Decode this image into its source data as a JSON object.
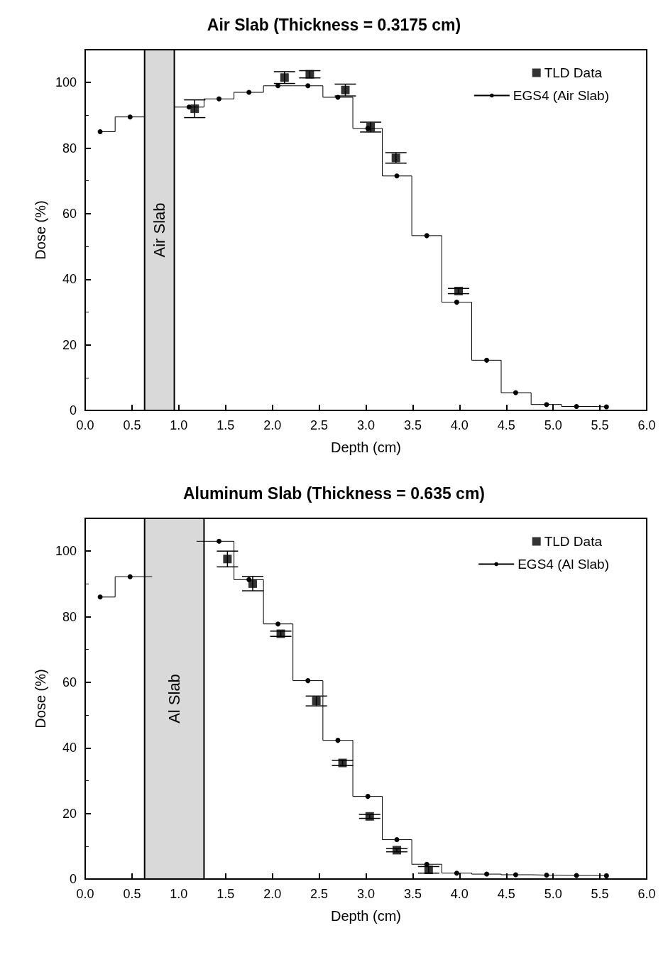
{
  "chart_data": [
    {
      "type": "scatter",
      "title": "Air Slab (Thickness = 0.3175 cm)",
      "xlabel": "Depth (cm)",
      "ylabel": "Dose (%)",
      "xlim": [
        0,
        6
      ],
      "ylim": [
        0,
        110
      ],
      "xticks": [
        {
          "value": 0,
          "label": "0.0"
        },
        0.5,
        {
          "value": 1,
          "label": "1.0"
        },
        1.5,
        {
          "value": 2,
          "label": "2.0"
        },
        2.5,
        {
          "value": 3,
          "label": "3.0"
        },
        3.5,
        {
          "value": 4,
          "label": "4.0"
        },
        4.5,
        {
          "value": 5,
          "label": "5.0"
        },
        5.5,
        {
          "value": 6,
          "label": "6.0"
        }
      ],
      "yticks": [
        0,
        20,
        40,
        60,
        80,
        100
      ],
      "legend": "top right",
      "grid": false,
      "bands": [
        {
          "axis": "x",
          "from": 0.635,
          "to": 0.9525,
          "label": "Air Slab",
          "color": "#d9d9d9"
        }
      ],
      "series": [
        {
          "name": "TLD Data",
          "marker": "square",
          "color": "#000000",
          "x": [
            1.17,
            2.13,
            2.4,
            2.78,
            3.05,
            3.32,
            3.99
          ],
          "values": [
            92,
            101.5,
            102.5,
            97.7,
            86.4,
            77,
            36.4
          ],
          "errors": [
            2.7,
            1.8,
            1.1,
            1.8,
            1.5,
            1.6,
            0.8
          ]
        },
        {
          "name": "EGS4 (Air Slab)",
          "type": "step",
          "marker": "circle",
          "line_style": "solid",
          "color": "#000000",
          "x": [
            0.16,
            0.48,
            0.8,
            1.11,
            1.43,
            1.75,
            2.06,
            2.38,
            2.7,
            3.02,
            3.33,
            3.65,
            3.97,
            4.29,
            4.6,
            4.93,
            5.25,
            5.57
          ],
          "values": [
            85,
            89.5,
            null,
            92.5,
            95,
            97,
            99,
            99,
            95.5,
            86,
            71.5,
            53.3,
            33,
            15.3,
            5.4,
            1.8,
            1.2,
            1.1
          ]
        }
      ]
    },
    {
      "type": "scatter",
      "title": "Aluminum Slab (Thickness = 0.635 cm)",
      "xlabel": "Depth (cm)",
      "ylabel": "Dose (%)",
      "xlim": [
        0,
        6
      ],
      "ylim": [
        0,
        110
      ],
      "xticks": [
        {
          "value": 0,
          "label": "0.0"
        },
        0.5,
        {
          "value": 1,
          "label": "1.0"
        },
        1.5,
        {
          "value": 2,
          "label": "2.0"
        },
        2.5,
        {
          "value": 3,
          "label": "3.0"
        },
        3.5,
        {
          "value": 4,
          "label": "4.0"
        },
        4.5,
        {
          "value": 5,
          "label": "5.0"
        },
        5.5,
        {
          "value": 6,
          "label": "6.0"
        }
      ],
      "yticks": [
        0,
        20,
        40,
        60,
        80,
        100
      ],
      "legend": "top right",
      "grid": false,
      "bands": [
        {
          "axis": "x",
          "from": 0.635,
          "to": 1.27,
          "label": "Al Slab",
          "color": "#d9d9d9"
        }
      ],
      "series": [
        {
          "name": "TLD Data",
          "marker": "square",
          "color": "#000000",
          "x": [
            1.52,
            1.79,
            2.09,
            2.47,
            2.75,
            3.04,
            3.33,
            3.67
          ],
          "values": [
            97.6,
            90.1,
            74.8,
            54.3,
            35.4,
            19.1,
            8.8,
            2.8
          ],
          "errors": [
            2.4,
            2.2,
            0.8,
            1.5,
            0.8,
            0.6,
            0.5,
            1
          ]
        },
        {
          "name": "EGS4 (Al Slab)",
          "type": "step",
          "marker": "circle",
          "line_style": "solid",
          "color": "#000000",
          "x": [
            0.16,
            0.48,
            0.95,
            1.43,
            1.75,
            2.06,
            2.38,
            2.7,
            3.02,
            3.33,
            3.65,
            3.97,
            4.29,
            4.6,
            4.93,
            5.25,
            5.57
          ],
          "values": [
            86,
            92.2,
            null,
            103,
            91.3,
            77.8,
            60.5,
            42.3,
            25.2,
            12,
            4.5,
            1.8,
            1.5,
            1.3,
            1.2,
            1.1,
            1
          ]
        }
      ]
    }
  ]
}
